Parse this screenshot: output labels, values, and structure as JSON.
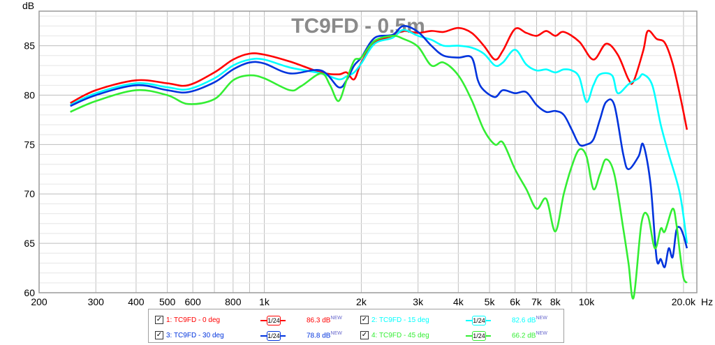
{
  "chart_data": {
    "type": "line",
    "title": "TC9FD - 0.5m",
    "ylabel": "dB",
    "xunit": "Hz",
    "xscale": "log",
    "xlim": [
      200,
      22000
    ],
    "ylim": [
      60,
      88.5
    ],
    "grid": true,
    "x_ticks": [
      {
        "v": 200,
        "label": "200"
      },
      {
        "v": 300,
        "label": "300"
      },
      {
        "v": 400,
        "label": "400"
      },
      {
        "v": 500,
        "label": "500"
      },
      {
        "v": 600,
        "label": "600"
      },
      {
        "v": 800,
        "label": "800"
      },
      {
        "v": 1000,
        "label": "1k"
      },
      {
        "v": 2000,
        "label": "2k"
      },
      {
        "v": 3000,
        "label": "3k"
      },
      {
        "v": 4000,
        "label": "4k"
      },
      {
        "v": 5000,
        "label": "5k"
      },
      {
        "v": 6000,
        "label": "6k"
      },
      {
        "v": 7000,
        "label": "7k"
      },
      {
        "v": 8000,
        "label": "8k"
      },
      {
        "v": 10000,
        "label": "10k"
      },
      {
        "v": 20000,
        "label": "20.0k"
      }
    ],
    "y_ticks": [
      {
        "v": 60,
        "label": "60"
      },
      {
        "v": 65,
        "label": "65"
      },
      {
        "v": 70,
        "label": "70"
      },
      {
        "v": 75,
        "label": "75"
      },
      {
        "v": 80,
        "label": "80"
      },
      {
        "v": 85,
        "label": "85"
      }
    ],
    "series": [
      {
        "name": "1: TC9FD - 0 deg",
        "color": "#ff0000",
        "smoothing": "1/24",
        "value": "86.3 dB",
        "badge": "NEW",
        "points": [
          [
            250,
            79.2
          ],
          [
            300,
            80.5
          ],
          [
            400,
            81.5
          ],
          [
            500,
            81.2
          ],
          [
            580,
            81.0
          ],
          [
            700,
            82.3
          ],
          [
            800,
            83.6
          ],
          [
            900,
            84.2
          ],
          [
            1000,
            84.1
          ],
          [
            1200,
            83.4
          ],
          [
            1500,
            82.3
          ],
          [
            1700,
            82.1
          ],
          [
            1800,
            82.3
          ],
          [
            1900,
            81.6
          ],
          [
            2000,
            83.3
          ],
          [
            2200,
            85.3
          ],
          [
            2500,
            86.0
          ],
          [
            2700,
            86.5
          ],
          [
            3000,
            86.3
          ],
          [
            3300,
            86.5
          ],
          [
            3600,
            86.4
          ],
          [
            4000,
            86.8
          ],
          [
            4400,
            86.3
          ],
          [
            4800,
            85.0
          ],
          [
            5200,
            83.6
          ],
          [
            5500,
            84.5
          ],
          [
            6000,
            86.7
          ],
          [
            6500,
            86.3
          ],
          [
            7000,
            86.0
          ],
          [
            7500,
            86.5
          ],
          [
            8000,
            86.0
          ],
          [
            8500,
            86.4
          ],
          [
            9500,
            85.4
          ],
          [
            10500,
            83.6
          ],
          [
            11500,
            85.2
          ],
          [
            12500,
            84.1
          ],
          [
            13500,
            81.6
          ],
          [
            14000,
            81.4
          ],
          [
            15000,
            84.5
          ],
          [
            15500,
            86.5
          ],
          [
            16500,
            85.7
          ],
          [
            17500,
            85.3
          ],
          [
            18500,
            83.2
          ],
          [
            19500,
            80.0
          ],
          [
            20500,
            76.5
          ]
        ]
      },
      {
        "name": "2: TC9FD - 15 deg",
        "color": "#00ffff",
        "smoothing": "1/24",
        "value": "82.6 dB",
        "badge": "NEW",
        "points": [
          [
            250,
            79.0
          ],
          [
            300,
            80.2
          ],
          [
            400,
            81.2
          ],
          [
            500,
            80.8
          ],
          [
            580,
            80.6
          ],
          [
            700,
            81.7
          ],
          [
            800,
            83.0
          ],
          [
            900,
            83.6
          ],
          [
            1000,
            83.6
          ],
          [
            1200,
            82.8
          ],
          [
            1500,
            82.2
          ],
          [
            1700,
            81.6
          ],
          [
            1800,
            81.9
          ],
          [
            1900,
            82.3
          ],
          [
            2000,
            83.2
          ],
          [
            2200,
            85.2
          ],
          [
            2500,
            85.8
          ],
          [
            2700,
            86.6
          ],
          [
            3000,
            86.0
          ],
          [
            3300,
            85.6
          ],
          [
            3600,
            85.0
          ],
          [
            4000,
            85.0
          ],
          [
            4400,
            84.8
          ],
          [
            4800,
            84.2
          ],
          [
            5200,
            83.0
          ],
          [
            5500,
            83.3
          ],
          [
            6000,
            84.6
          ],
          [
            6500,
            83.1
          ],
          [
            7000,
            82.5
          ],
          [
            7500,
            82.6
          ],
          [
            8000,
            82.3
          ],
          [
            8500,
            82.6
          ],
          [
            9000,
            82.5
          ],
          [
            9500,
            81.8
          ],
          [
            10000,
            79.3
          ],
          [
            10500,
            81.0
          ],
          [
            11000,
            82.1
          ],
          [
            12000,
            82.0
          ],
          [
            12500,
            80.2
          ],
          [
            13500,
            81.1
          ],
          [
            14500,
            81.7
          ],
          [
            15000,
            82.1
          ],
          [
            16000,
            81.0
          ],
          [
            17000,
            77.0
          ],
          [
            18000,
            74.0
          ],
          [
            19500,
            70.0
          ],
          [
            20500,
            65.0
          ]
        ]
      },
      {
        "name": "3: TC9FD - 30 deg",
        "color": "#0033dd",
        "smoothing": "1/24",
        "value": "78.8 dB",
        "badge": "NEW",
        "points": [
          [
            250,
            78.9
          ],
          [
            300,
            80.0
          ],
          [
            400,
            81.0
          ],
          [
            500,
            80.5
          ],
          [
            580,
            80.3
          ],
          [
            700,
            81.3
          ],
          [
            800,
            82.6
          ],
          [
            900,
            83.3
          ],
          [
            1000,
            83.2
          ],
          [
            1200,
            82.2
          ],
          [
            1500,
            82.5
          ],
          [
            1700,
            80.8
          ],
          [
            1800,
            81.5
          ],
          [
            1900,
            83.0
          ],
          [
            2000,
            83.8
          ],
          [
            2200,
            85.8
          ],
          [
            2500,
            86.1
          ],
          [
            2700,
            87.0
          ],
          [
            3000,
            86.4
          ],
          [
            3300,
            85.0
          ],
          [
            3600,
            84.0
          ],
          [
            4000,
            83.8
          ],
          [
            4400,
            83.8
          ],
          [
            4600,
            81.5
          ],
          [
            4800,
            80.5
          ],
          [
            5200,
            79.8
          ],
          [
            5500,
            80.5
          ],
          [
            6000,
            80.2
          ],
          [
            6500,
            80.3
          ],
          [
            7000,
            79.0
          ],
          [
            7500,
            78.3
          ],
          [
            8000,
            78.4
          ],
          [
            8500,
            78.0
          ],
          [
            9000,
            76.5
          ],
          [
            9500,
            75.0
          ],
          [
            10000,
            75.0
          ],
          [
            10500,
            75.5
          ],
          [
            11000,
            77.5
          ],
          [
            11500,
            79.3
          ],
          [
            12200,
            79.0
          ],
          [
            13000,
            74.0
          ],
          [
            13500,
            72.5
          ],
          [
            14500,
            73.8
          ],
          [
            15000,
            75.0
          ],
          [
            15800,
            71.0
          ],
          [
            16500,
            63.5
          ],
          [
            17000,
            63.4
          ],
          [
            17500,
            62.6
          ],
          [
            18000,
            64.5
          ],
          [
            18500,
            63.6
          ],
          [
            19000,
            66.3
          ],
          [
            19500,
            66.6
          ],
          [
            20000,
            65.8
          ],
          [
            20500,
            64.5
          ]
        ]
      },
      {
        "name": "4: TC9FD - 45 deg",
        "color": "#33ee33",
        "smoothing": "1/24",
        "value": "66.2 dB",
        "badge": "NEW",
        "points": [
          [
            250,
            78.3
          ],
          [
            300,
            79.4
          ],
          [
            400,
            80.5
          ],
          [
            500,
            80.0
          ],
          [
            580,
            79.1
          ],
          [
            700,
            79.6
          ],
          [
            800,
            81.5
          ],
          [
            900,
            82.0
          ],
          [
            1000,
            81.7
          ],
          [
            1200,
            80.5
          ],
          [
            1300,
            80.9
          ],
          [
            1500,
            82.2
          ],
          [
            1600,
            81.0
          ],
          [
            1700,
            79.4
          ],
          [
            1800,
            81.5
          ],
          [
            1900,
            83.5
          ],
          [
            2000,
            83.8
          ],
          [
            2200,
            85.5
          ],
          [
            2500,
            86.0
          ],
          [
            2700,
            85.7
          ],
          [
            3000,
            84.9
          ],
          [
            3300,
            83.0
          ],
          [
            3600,
            83.3
          ],
          [
            4000,
            82.0
          ],
          [
            4400,
            79.5
          ],
          [
            4800,
            76.5
          ],
          [
            5200,
            75.0
          ],
          [
            5500,
            75.2
          ],
          [
            6000,
            72.5
          ],
          [
            6500,
            70.5
          ],
          [
            7000,
            68.5
          ],
          [
            7500,
            69.5
          ],
          [
            8000,
            66.2
          ],
          [
            8500,
            70.0
          ],
          [
            9000,
            72.8
          ],
          [
            9500,
            74.5
          ],
          [
            10000,
            73.8
          ],
          [
            10500,
            70.5
          ],
          [
            11000,
            72.0
          ],
          [
            11500,
            73.5
          ],
          [
            12200,
            72.0
          ],
          [
            13000,
            66.5
          ],
          [
            13500,
            63.0
          ],
          [
            14000,
            59.5
          ],
          [
            14800,
            67.0
          ],
          [
            15500,
            67.8
          ],
          [
            16300,
            64.5
          ],
          [
            17000,
            66.5
          ],
          [
            17500,
            66.2
          ],
          [
            18500,
            68.5
          ],
          [
            19000,
            67.0
          ],
          [
            19500,
            64.0
          ],
          [
            20000,
            61.5
          ],
          [
            20500,
            61.0
          ]
        ]
      }
    ]
  }
}
